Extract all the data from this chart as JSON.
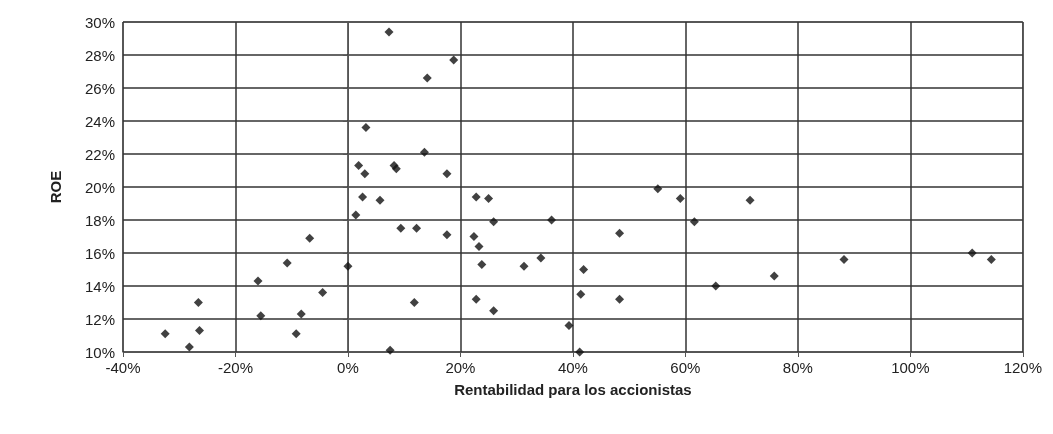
{
  "chart_data": {
    "type": "scatter",
    "xlabel": "Rentabilidad para los accionistas",
    "ylabel": "ROE",
    "marker": "diamond",
    "grid": true,
    "xlim": [
      -40,
      120
    ],
    "ylim": [
      10,
      30
    ],
    "xticks": [
      {
        "value": -40,
        "label": "-40%"
      },
      {
        "value": -20,
        "label": "-20%"
      },
      {
        "value": 0,
        "label": "0%"
      },
      {
        "value": 20,
        "label": "20%"
      },
      {
        "value": 40,
        "label": "40%"
      },
      {
        "value": 60,
        "label": "60%"
      },
      {
        "value": 80,
        "label": "80%"
      },
      {
        "value": 100,
        "label": "100%"
      },
      {
        "value": 120,
        "label": "120%"
      }
    ],
    "yticks": [
      {
        "value": 10,
        "label": "10%"
      },
      {
        "value": 12,
        "label": "12%"
      },
      {
        "value": 14,
        "label": "14%"
      },
      {
        "value": 16,
        "label": "16%"
      },
      {
        "value": 18,
        "label": "18%"
      },
      {
        "value": 20,
        "label": "20%"
      },
      {
        "value": 22,
        "label": "22%"
      },
      {
        "value": 24,
        "label": "24%"
      },
      {
        "value": 26,
        "label": "26%"
      },
      {
        "value": 28,
        "label": "28%"
      },
      {
        "value": 30,
        "label": "30%"
      }
    ],
    "series": [
      {
        "color": "#111111",
        "x": [
          7.3,
          3.2,
          1.9,
          3.0,
          8.2,
          8.6,
          2.6,
          5.7,
          1.4,
          9.4,
          -6.8,
          -10.8,
          0,
          -16,
          -4.5,
          -26.6,
          -15.5,
          -8.3,
          -32.5,
          -26.4,
          -9.2,
          -28.2,
          7.5,
          18.8,
          14.1,
          13.6,
          17.6,
          22.8,
          25.0,
          25.9,
          36.2,
          12.2,
          17.6,
          22.4,
          23.3,
          23.8,
          31.3,
          34.3,
          41.9,
          41.4,
          48.3,
          48.3,
          11.8,
          22.8,
          25.9,
          39.3,
          41.2,
          55.1,
          59.1,
          61.6,
          65.4,
          71.5,
          75.8,
          88.2,
          111,
          114.4
        ],
        "values": [
          29.4,
          23.6,
          21.3,
          20.8,
          21.3,
          21.1,
          19.4,
          19.2,
          18.3,
          17.5,
          16.9,
          15.4,
          15.2,
          14.3,
          13.6,
          13.0,
          12.2,
          12.3,
          11.1,
          11.3,
          11.1,
          10.3,
          10.1,
          27.7,
          26.6,
          22.1,
          20.8,
          19.4,
          19.3,
          17.9,
          18.0,
          17.5,
          17.1,
          17.0,
          16.4,
          15.3,
          15.2,
          15.7,
          15.0,
          13.5,
          17.2,
          13.2,
          13.0,
          13.2,
          12.5,
          11.6,
          10.0,
          19.9,
          19.3,
          17.9,
          14.0,
          19.2,
          14.6,
          15.6,
          16.0,
          15.6
        ]
      }
    ]
  }
}
